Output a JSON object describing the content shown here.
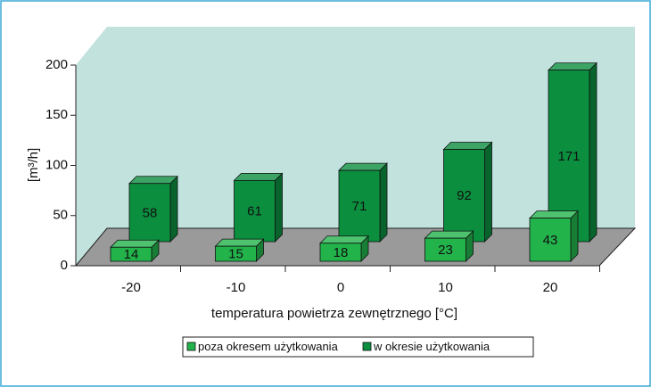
{
  "chart_data": {
    "type": "bar3d",
    "y_label": "[m³/h]",
    "x_label": "temperatura powietrza zewnętrznego [°C]",
    "categories": [
      "-20",
      "-10",
      "0",
      "10",
      "20"
    ],
    "series": [
      {
        "name": "poza okresem użytkowania",
        "color": "#22b34b",
        "values": [
          14,
          15,
          18,
          23,
          43
        ]
      },
      {
        "name": "w okresie użytkowania",
        "color": "#0b8f3f",
        "values": [
          58,
          61,
          71,
          92,
          171
        ]
      }
    ],
    "ylim": [
      0,
      200
    ],
    "yticks": [
      0,
      50,
      100,
      150,
      200
    ]
  }
}
